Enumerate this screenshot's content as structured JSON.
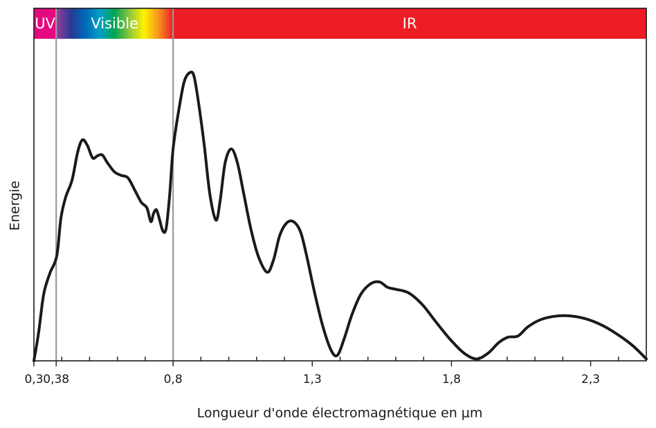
{
  "chart_data": {
    "type": "line",
    "xlabel": "Longueur d'onde électromagnétique en µm",
    "ylabel": "Energie",
    "xlim": [
      0.3,
      2.5
    ],
    "ylim": [
      0,
      100
    ],
    "xticks": [
      {
        "value": 0.3,
        "label": "0,3"
      },
      {
        "value": 0.38,
        "label": "0,38"
      },
      {
        "value": 0.8,
        "label": "0,8"
      },
      {
        "value": 1.3,
        "label": "1,3"
      },
      {
        "value": 1.8,
        "label": "1,8"
      },
      {
        "value": 2.3,
        "label": "2,3"
      }
    ],
    "xminorticks": [
      0.4,
      0.5,
      0.6,
      0.7,
      0.9,
      1.0,
      1.1,
      1.2,
      1.4,
      1.5,
      1.6,
      1.7,
      1.9,
      2.0,
      2.1,
      2.2,
      2.4
    ],
    "bands": [
      {
        "label": "UV",
        "start": 0.3,
        "end": 0.38,
        "colors": [
          "#e5097f"
        ]
      },
      {
        "label": "Visible",
        "start": 0.38,
        "end": 0.8,
        "colors": [
          "#9b3c9c",
          "#283a93",
          "#0068b8",
          "#00a0c6",
          "#00a651",
          "#8dc63f",
          "#fff200",
          "#f7941d",
          "#ee1c25"
        ]
      },
      {
        "label": "IR",
        "start": 0.8,
        "end": 2.5,
        "colors": [
          "#ee1c25"
        ]
      }
    ],
    "x": [
      0.3,
      0.317,
      0.335,
      0.357,
      0.382,
      0.397,
      0.414,
      0.437,
      0.457,
      0.474,
      0.492,
      0.511,
      0.529,
      0.546,
      0.564,
      0.589,
      0.613,
      0.638,
      0.663,
      0.686,
      0.706,
      0.72,
      0.73,
      0.74,
      0.75,
      0.763,
      0.775,
      0.788,
      0.8,
      0.82,
      0.84,
      0.86,
      0.875,
      0.892,
      0.912,
      0.932,
      0.954,
      0.969,
      0.987,
      1.009,
      1.031,
      1.054,
      1.079,
      1.106,
      1.138,
      1.161,
      1.183,
      1.208,
      1.233,
      1.258,
      1.28,
      1.307,
      1.337,
      1.367,
      1.39,
      1.414,
      1.442,
      1.474,
      1.509,
      1.541,
      1.571,
      1.601,
      1.646,
      1.696,
      1.745,
      1.795,
      1.845,
      1.89,
      1.932,
      1.969,
      2.002,
      2.039,
      2.074,
      2.118,
      2.168,
      2.218,
      2.28,
      2.342,
      2.405,
      2.454,
      2.5
    ],
    "series": [
      {
        "color": "#1a1a1a",
        "values": [
          0,
          8.8,
          20.6,
          27.1,
          32.5,
          44.3,
          50.8,
          56.1,
          64.7,
          68.6,
          66.9,
          63.0,
          63.7,
          63.9,
          61.5,
          58.7,
          57.6,
          56.8,
          52.9,
          49.2,
          47.5,
          43.2,
          45.8,
          46.9,
          44.3,
          40.4,
          41.1,
          51.8,
          65.8,
          77.6,
          86.7,
          89.5,
          88.4,
          79.8,
          66.9,
          51.8,
          43.7,
          49.7,
          61.5,
          65.8,
          61.5,
          51.8,
          41.1,
          32.5,
          27.5,
          31.4,
          38.9,
          42.8,
          43.2,
          40.0,
          32.5,
          21.7,
          11.0,
          3.4,
          1.7,
          6.7,
          14.2,
          20.6,
          23.9,
          24.5,
          22.8,
          22.2,
          21.1,
          17.4,
          12.0,
          6.7,
          2.4,
          0.6,
          2.4,
          5.6,
          7.3,
          7.7,
          10.5,
          12.7,
          13.8,
          14.0,
          13.1,
          11.0,
          7.7,
          4.5,
          0.6
        ]
      }
    ]
  }
}
